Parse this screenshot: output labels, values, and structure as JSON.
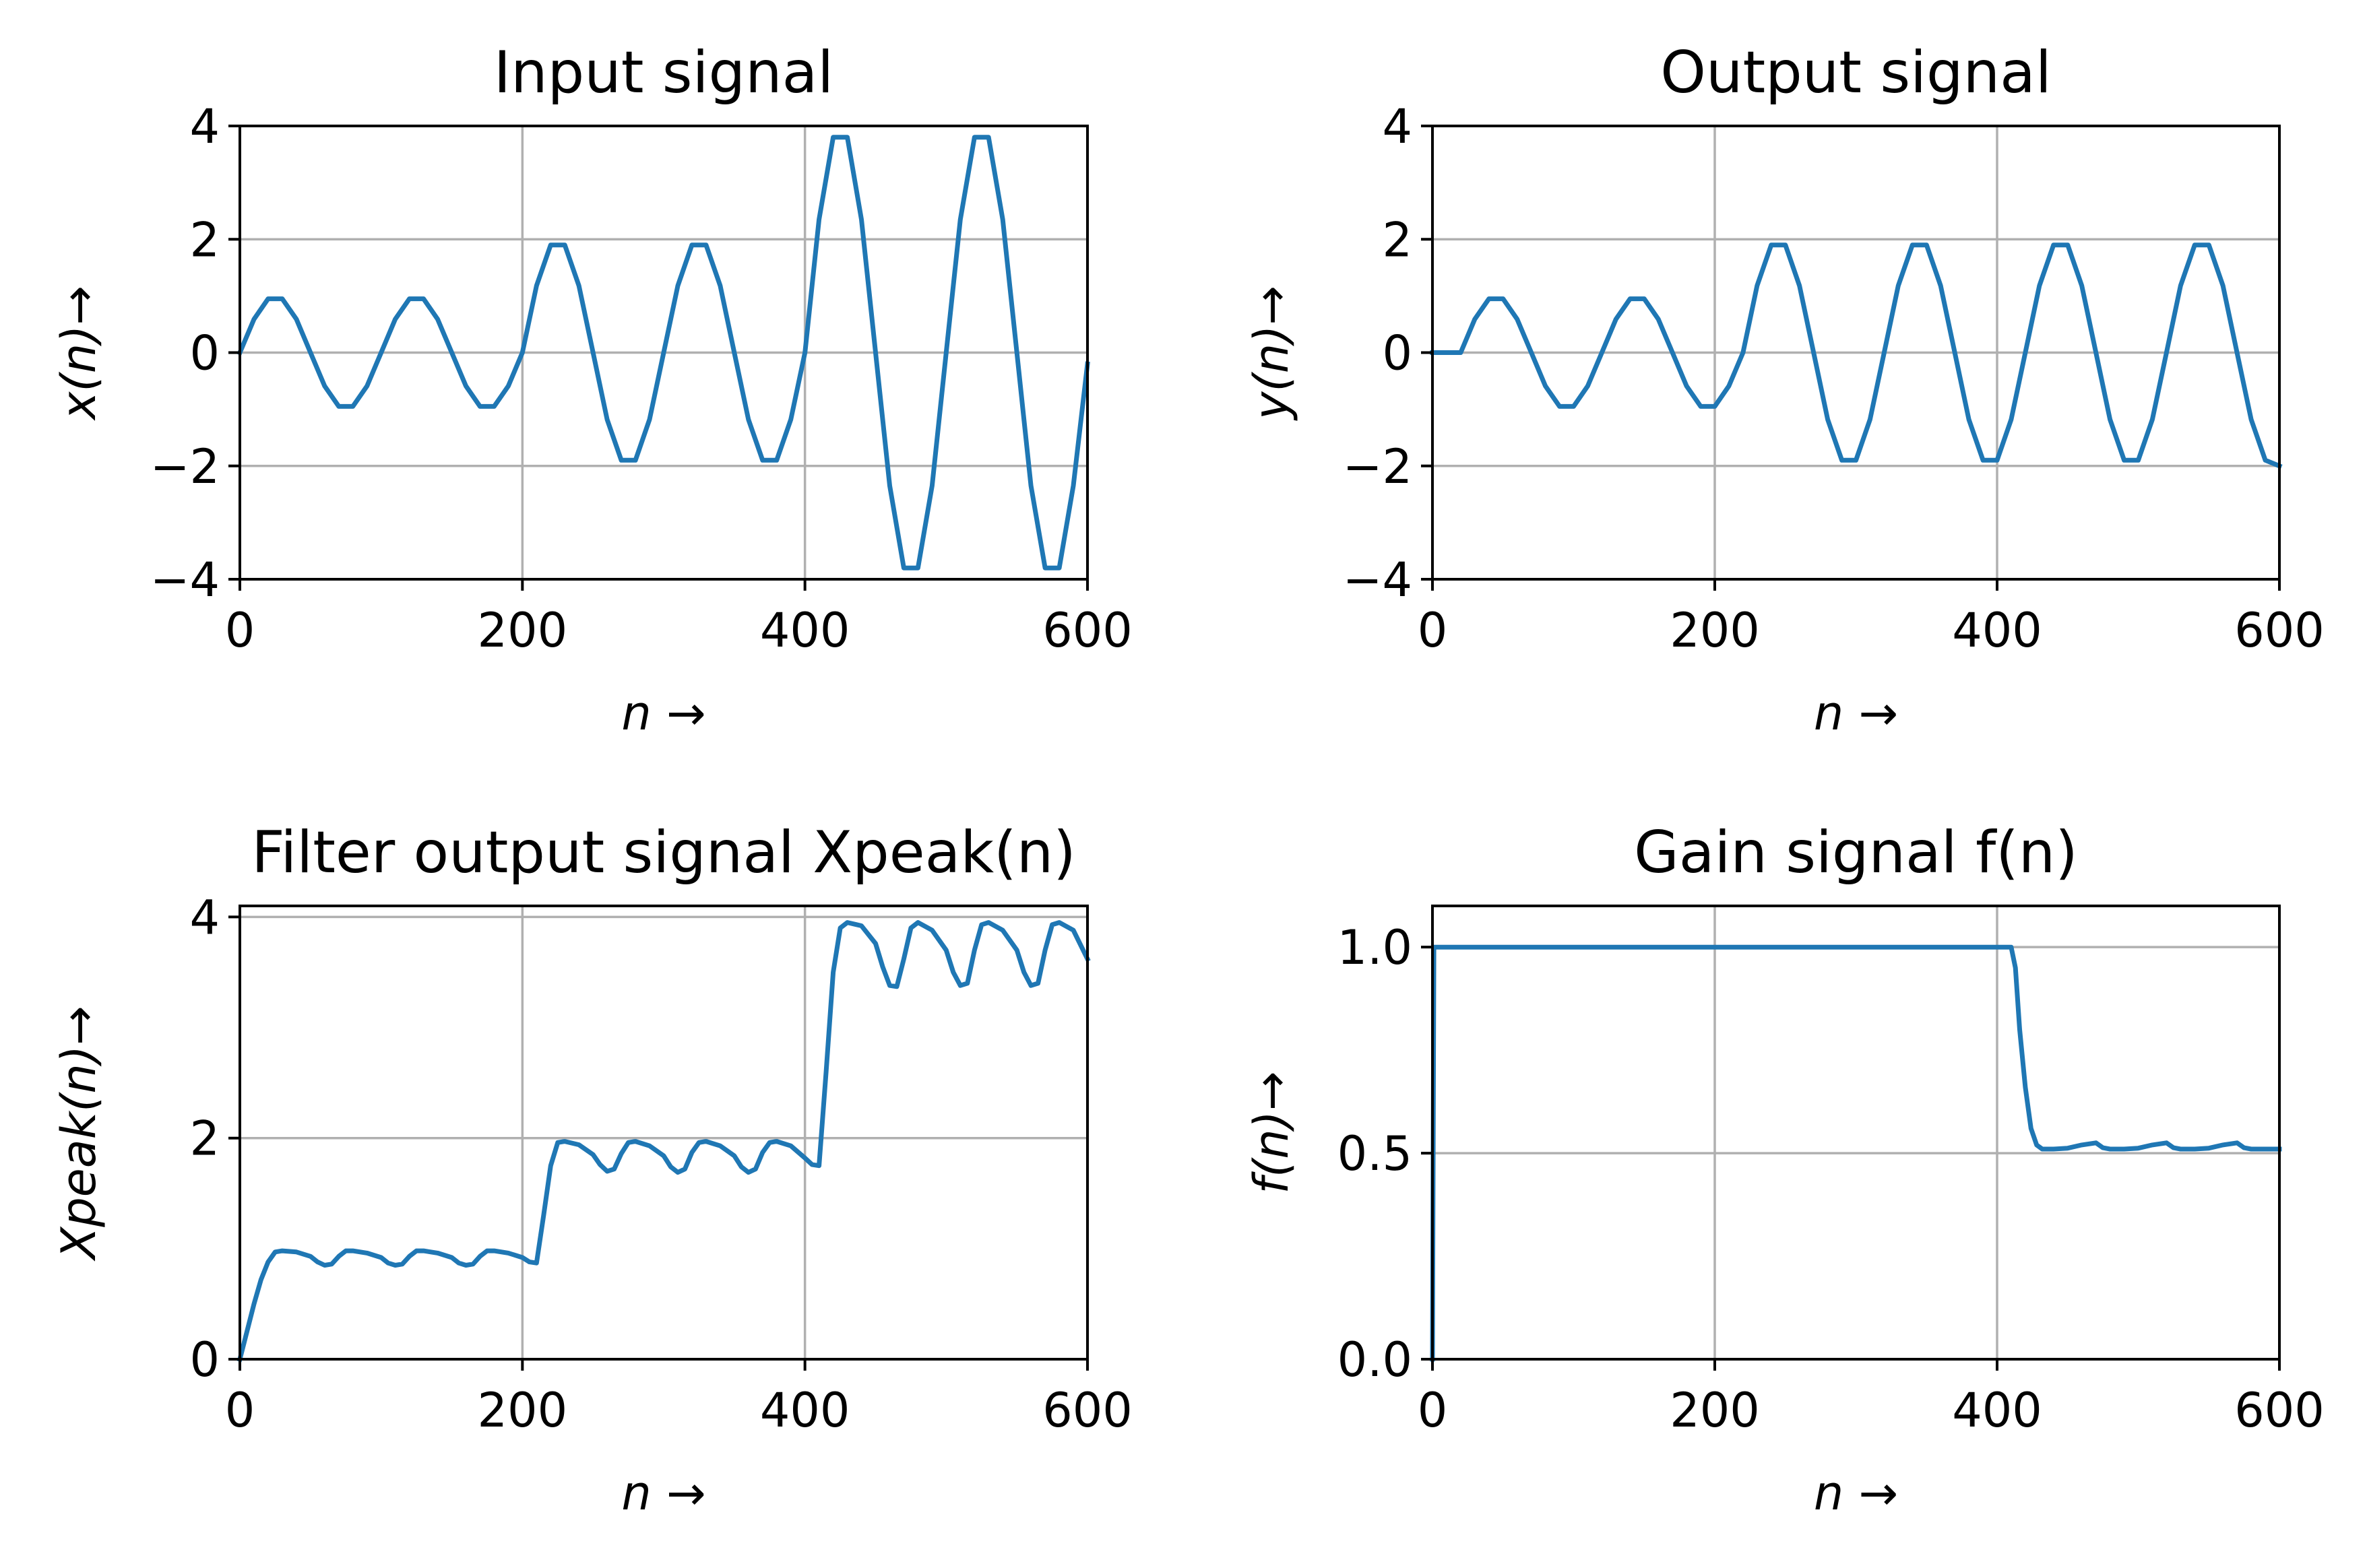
{
  "chart_data": [
    {
      "type": "line",
      "title": "Input signal",
      "xlabel": "n →",
      "ylabel": "x(n)→",
      "xlim": [
        0,
        600
      ],
      "ylim": [
        -4,
        4
      ],
      "xticks": [
        "0",
        "200",
        "400",
        "600"
      ],
      "yticks": [
        "−4",
        "−2",
        "0",
        "2",
        "4"
      ],
      "grid": true,
      "series_color": "#1f77b4",
      "x": [
        0,
        10,
        20,
        30,
        40,
        50,
        60,
        70,
        80,
        90,
        100,
        110,
        120,
        130,
        140,
        150,
        160,
        170,
        180,
        190,
        200,
        210,
        220,
        230,
        240,
        250,
        260,
        270,
        280,
        290,
        300,
        310,
        320,
        330,
        340,
        350,
        360,
        370,
        380,
        390,
        400,
        410,
        420,
        430,
        440,
        450,
        460,
        470,
        480,
        490,
        500,
        510,
        520,
        530,
        540,
        550,
        560,
        570,
        580,
        590,
        600
      ],
      "y": [
        0,
        0.59,
        0.95,
        0.95,
        0.59,
        0,
        -0.59,
        -0.95,
        -0.95,
        -0.59,
        0,
        0.59,
        0.95,
        0.95,
        0.59,
        0,
        -0.59,
        -0.95,
        -0.95,
        -0.59,
        0,
        1.18,
        1.9,
        1.9,
        1.18,
        0,
        -1.18,
        -1.9,
        -1.9,
        -1.18,
        0,
        1.18,
        1.9,
        1.9,
        1.18,
        0,
        -1.18,
        -1.9,
        -1.9,
        -1.18,
        0,
        2.35,
        3.8,
        3.8,
        2.35,
        0,
        -2.35,
        -3.8,
        -3.8,
        -2.35,
        0,
        2.35,
        3.8,
        3.8,
        2.35,
        0,
        -2.35,
        -3.8,
        -3.8,
        -2.35,
        -0.2
      ]
    },
    {
      "type": "line",
      "title": "Output signal",
      "xlabel": "n →",
      "ylabel": "y(n)→",
      "xlim": [
        0,
        600
      ],
      "ylim": [
        -4,
        4
      ],
      "xticks": [
        "0",
        "200",
        "400",
        "600"
      ],
      "yticks": [
        "−4",
        "−2",
        "0",
        "2",
        "4"
      ],
      "grid": true,
      "series_color": "#1f77b4",
      "x": [
        0,
        10,
        20,
        30,
        40,
        50,
        60,
        70,
        80,
        90,
        100,
        110,
        120,
        130,
        140,
        150,
        160,
        170,
        180,
        190,
        200,
        210,
        220,
        230,
        240,
        250,
        260,
        270,
        280,
        290,
        300,
        310,
        320,
        330,
        340,
        350,
        360,
        370,
        380,
        390,
        400,
        410,
        420,
        430,
        440,
        450,
        460,
        470,
        480,
        490,
        500,
        510,
        520,
        530,
        540,
        550,
        560,
        570,
        580,
        590,
        600
      ],
      "y": [
        0,
        0,
        0,
        0.59,
        0.95,
        0.95,
        0.59,
        0,
        -0.59,
        -0.95,
        -0.95,
        -0.59,
        0,
        0.59,
        0.95,
        0.95,
        0.59,
        0,
        -0.59,
        -0.95,
        -0.95,
        -0.59,
        0,
        1.18,
        1.9,
        1.9,
        1.18,
        0,
        -1.18,
        -1.9,
        -1.9,
        -1.18,
        0,
        1.18,
        1.9,
        1.9,
        1.18,
        0,
        -1.18,
        -1.9,
        -1.9,
        -1.18,
        0,
        1.18,
        1.9,
        1.9,
        1.18,
        0,
        -1.18,
        -1.9,
        -1.9,
        -1.18,
        0,
        1.18,
        1.9,
        1.9,
        1.18,
        0,
        -1.18,
        -1.9,
        -2.0
      ]
    },
    {
      "type": "line",
      "title": "Filter output signal Xpeak(n)",
      "xlabel": "n →",
      "ylabel": "Xpeak(n)→",
      "xlim": [
        0,
        600
      ],
      "ylim": [
        0,
        4.1
      ],
      "xticks": [
        "0",
        "200",
        "400",
        "600"
      ],
      "yticks": [
        "0",
        "2",
        "4"
      ],
      "grid": true,
      "series_color": "#1f77b4",
      "x": [
        0,
        5,
        10,
        15,
        20,
        25,
        30,
        40,
        50,
        55,
        60,
        65,
        70,
        75,
        80,
        90,
        100,
        105,
        110,
        115,
        120,
        125,
        130,
        140,
        150,
        155,
        160,
        165,
        170,
        175,
        180,
        190,
        200,
        205,
        210,
        215,
        220,
        225,
        230,
        240,
        250,
        255,
        260,
        265,
        270,
        275,
        280,
        290,
        300,
        305,
        310,
        315,
        320,
        325,
        330,
        340,
        350,
        355,
        360,
        365,
        370,
        375,
        380,
        390,
        400,
        405,
        410,
        415,
        420,
        425,
        430,
        440,
        450,
        455,
        460,
        465,
        470,
        475,
        480,
        490,
        500,
        505,
        510,
        515,
        520,
        525,
        530,
        540,
        550,
        555,
        560,
        565,
        570,
        575,
        580,
        590,
        600
      ],
      "y": [
        0,
        0.25,
        0.5,
        0.72,
        0.88,
        0.97,
        0.98,
        0.97,
        0.93,
        0.88,
        0.85,
        0.86,
        0.93,
        0.98,
        0.98,
        0.96,
        0.92,
        0.87,
        0.85,
        0.86,
        0.93,
        0.98,
        0.98,
        0.96,
        0.92,
        0.87,
        0.85,
        0.86,
        0.93,
        0.98,
        0.98,
        0.96,
        0.92,
        0.88,
        0.87,
        1.3,
        1.75,
        1.96,
        1.97,
        1.94,
        1.85,
        1.76,
        1.7,
        1.72,
        1.86,
        1.96,
        1.97,
        1.93,
        1.84,
        1.74,
        1.69,
        1.72,
        1.87,
        1.96,
        1.97,
        1.93,
        1.84,
        1.74,
        1.69,
        1.72,
        1.87,
        1.96,
        1.97,
        1.93,
        1.82,
        1.76,
        1.75,
        2.6,
        3.5,
        3.9,
        3.95,
        3.92,
        3.76,
        3.55,
        3.38,
        3.37,
        3.62,
        3.9,
        3.95,
        3.88,
        3.7,
        3.5,
        3.38,
        3.4,
        3.7,
        3.93,
        3.95,
        3.88,
        3.7,
        3.5,
        3.38,
        3.4,
        3.7,
        3.93,
        3.95,
        3.88,
        3.62
      ]
    },
    {
      "type": "line",
      "title": "Gain signal f(n)",
      "xlabel": "n →",
      "ylabel": "f(n)→",
      "xlim": [
        0,
        600
      ],
      "ylim": [
        0,
        1.1
      ],
      "xticks": [
        "0",
        "200",
        "400",
        "600"
      ],
      "yticks": [
        "0.0",
        "0.5",
        "1.0"
      ],
      "grid": true,
      "series_color": "#1f77b4",
      "x": [
        0,
        1,
        410,
        413,
        416,
        420,
        424,
        428,
        432,
        440,
        450,
        460,
        470,
        475,
        480,
        490,
        500,
        510,
        520,
        525,
        530,
        540,
        550,
        560,
        570,
        575,
        580,
        590,
        600
      ],
      "y": [
        0,
        1.0,
        1.0,
        0.95,
        0.8,
        0.66,
        0.56,
        0.52,
        0.51,
        0.51,
        0.512,
        0.52,
        0.525,
        0.513,
        0.51,
        0.51,
        0.512,
        0.52,
        0.525,
        0.513,
        0.51,
        0.51,
        0.512,
        0.52,
        0.525,
        0.513,
        0.51,
        0.51,
        0.51
      ]
    }
  ]
}
